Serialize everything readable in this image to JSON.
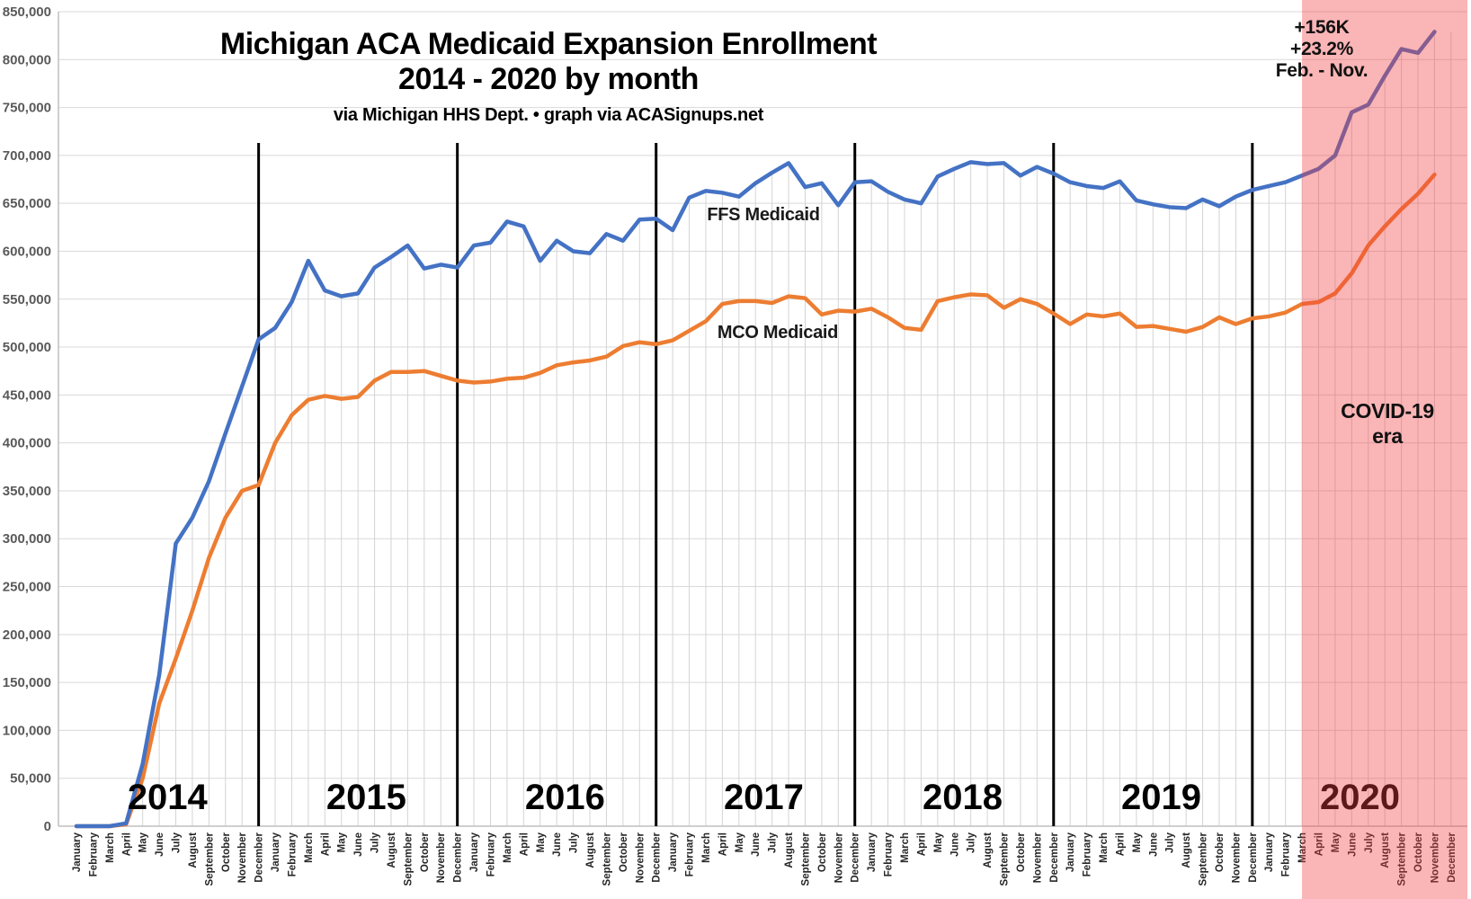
{
  "title": {
    "line1": "Michigan ACA Medicaid Expansion Enrollment",
    "line2": "2014 - 2020 by month",
    "subtitle": "via Michigan HHS Dept. • graph via ACASignups.net"
  },
  "annotations": {
    "ffs_label": "FFS Medicaid",
    "mco_label": "MCO Medicaid",
    "covid_gain": {
      "line1": "+156K",
      "line2": "+23.2%",
      "line3": "Feb. - Nov."
    },
    "covid_era": {
      "line1": "COVID-19",
      "line2": "era"
    }
  },
  "chart_data": {
    "type": "line",
    "title": "Michigan ACA Medicaid Expansion Enrollment 2014 - 2020 by month",
    "subtitle": "via Michigan HHS Dept. • graph via ACASignups.net",
    "xlabel": "",
    "ylabel": "",
    "ylim": [
      0,
      850000
    ],
    "ytick_step": 50000,
    "grid": true,
    "years": [
      2014,
      2015,
      2016,
      2017,
      2018,
      2019,
      2020
    ],
    "month_names": [
      "January",
      "February",
      "March",
      "April",
      "May",
      "June",
      "July",
      "August",
      "September",
      "October",
      "November",
      "December"
    ],
    "series": [
      {
        "name": "FFS Medicaid",
        "color": "#4472c4",
        "values": [
          0,
          0,
          0,
          3000,
          65000,
          158000,
          295000,
          322000,
          360000,
          410000,
          459000,
          508000,
          520000,
          547000,
          590000,
          559000,
          553000,
          556000,
          583000,
          594000,
          606000,
          582000,
          586000,
          583000,
          606000,
          609000,
          631000,
          626000,
          590000,
          611000,
          600000,
          598000,
          618000,
          611000,
          633000,
          634000,
          622000,
          656000,
          663000,
          661000,
          657000,
          671000,
          682000,
          692000,
          667000,
          671000,
          648000,
          672000,
          673000,
          662000,
          654000,
          650000,
          678000,
          686000,
          693000,
          691000,
          692000,
          679000,
          688000,
          681000,
          672000,
          668000,
          666000,
          673000,
          653000,
          649000,
          646000,
          645000,
          654000,
          647000,
          657000,
          664000,
          668000,
          672000,
          679000,
          686000,
          700000,
          745000,
          753000,
          783000,
          811000,
          807000,
          829000,
          null
        ]
      },
      {
        "name": "MCO Medicaid",
        "color": "#ed7d31",
        "values": [
          0,
          0,
          0,
          2000,
          50000,
          128000,
          175000,
          225000,
          280000,
          322000,
          350000,
          356000,
          400000,
          429000,
          445000,
          449000,
          446000,
          448000,
          465000,
          474000,
          474000,
          475000,
          470000,
          465000,
          463000,
          464000,
          467000,
          468000,
          473000,
          481000,
          484000,
          486000,
          490000,
          501000,
          505000,
          503000,
          507000,
          517000,
          527000,
          545000,
          548000,
          548000,
          546000,
          553000,
          551000,
          534000,
          538000,
          537000,
          540000,
          531000,
          520000,
          518000,
          548000,
          552000,
          555000,
          554000,
          541000,
          550000,
          545000,
          535000,
          524000,
          534000,
          532000,
          535000,
          521000,
          522000,
          519000,
          516000,
          521000,
          531000,
          524000,
          530000,
          532000,
          536000,
          545000,
          547000,
          556000,
          577000,
          606000,
          626000,
          644000,
          660000,
          680000,
          null
        ]
      }
    ],
    "covid_region": {
      "label": "COVID-19 era",
      "start": "March 2020",
      "end": "December 2020",
      "start_month_index": 74,
      "fill": "rgba(242,60,64,0.38)"
    },
    "covid_gain_note": "+156K +23.2% Feb. - Nov.",
    "year_separator_month_indices": [
      11,
      23,
      35,
      47,
      59,
      71
    ],
    "colors": {
      "gridline": "#d9d9d9",
      "drop_line": "#d4d4d4",
      "axis_line": "#bfbfbf",
      "year_separator": "#000000"
    }
  }
}
